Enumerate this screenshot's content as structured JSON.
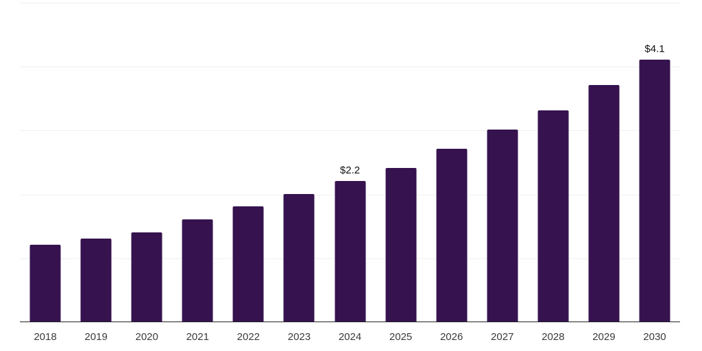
{
  "chart_data": {
    "type": "bar",
    "title": "",
    "xlabel": "",
    "ylabel": "",
    "categories": [
      "2018",
      "2019",
      "2020",
      "2021",
      "2022",
      "2023",
      "2024",
      "2025",
      "2026",
      "2027",
      "2028",
      "2029",
      "2030"
    ],
    "values": [
      1.2,
      1.3,
      1.4,
      1.6,
      1.8,
      2.0,
      2.2,
      2.4,
      2.7,
      3.0,
      3.3,
      3.7,
      4.1
    ],
    "bar_value_labels": [
      "",
      "",
      "",
      "",
      "",
      "",
      "$2.2",
      "",
      "",
      "",
      "",
      "",
      "$4.1"
    ],
    "ylim": [
      0,
      5
    ],
    "gridline_values": [
      1,
      2,
      3,
      4,
      5
    ],
    "grid": "horizontal-only",
    "legend_position": "none",
    "colors": {
      "bar": "#36134F",
      "axis_line": "#222222",
      "gridline": "#f0f0f0",
      "tick_label": "#3a3a3a",
      "value_label": "#111111",
      "background": "#ffffff"
    }
  }
}
